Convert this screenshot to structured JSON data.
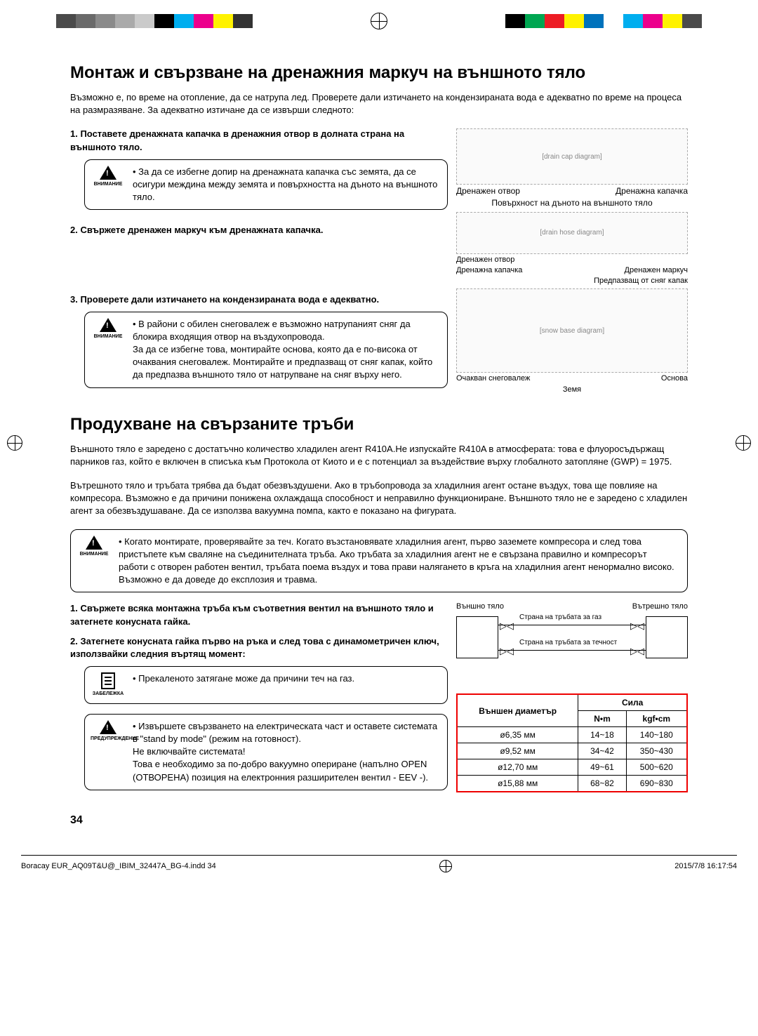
{
  "print": {
    "left_colors": [
      "#4a4a4a",
      "#6a6a6a",
      "#8a8a8a",
      "#aaaaaa",
      "#cacaca",
      "#000000",
      "#00aeef",
      "#ec008c",
      "#fff200",
      "#333333"
    ],
    "right_colors": [
      "#000000",
      "#00a651",
      "#ed1c24",
      "#fff200",
      "#0072bc",
      "#ffffff",
      "#00aeef",
      "#ec008c",
      "#fff200",
      "#4a4a4a"
    ]
  },
  "h1_1": "Монтаж и свързване на дренажния маркуч на външното тяло",
  "intro_1": "Възможно е, по време на отопление, да се натрупа лед. Проверете дали изтичането на кондензираната вода е адекватно по време на процеса на размразяване. За адекватно изтичане да се извърши следното:",
  "step1": "1.   Поставете дренажната капачка в дренажния отвор в долната страна на външното тяло.",
  "caution1_label": "ВНИМАНИЕ",
  "caution1_text": "За да се избегне допир на дренажната капачка със земята, да се осигури междина между земята и повърхността на дъното на външното тяло.",
  "fig1_labels": {
    "l1": "Дренажен отвор",
    "l2": "Дренажна капачка",
    "l3": "Повърхност на дъното на външното тяло",
    "l4": "Дренажен отвор",
    "l5": "Дренажна капачка",
    "l6": "Дренажен маркуч",
    "l7": "Предпазващ от сняг капак",
    "l8": "Очакван снеговалеж",
    "l9": "Основа",
    "l10": "Земя"
  },
  "step2": "2.   Свържете дренажен маркуч към дренажната капачка.",
  "step3": "3.   Проверете дали изтичането на кондензираната вода е адекватно.",
  "caution2_label": "ВНИМАНИЕ",
  "caution2_text": "В райони с обилен снеговалеж е възможно натрупаният сняг да блокира входящия отвор на въздухопровода.\nЗа да се избегне това, монтирайте основа, която да е по-висока от очаквания снеговалеж. Монтирайте и предпазващ от сняг капак, който да предпазва външното тяло от натрупване на сняг върху него.",
  "h1_2": "Продухване на свързаните тръби",
  "intro_2a": "Външното тяло е заредено с достатъчно количество хладилен агент R410A.Не изпускайте R410A в атмосферата: това е флуоросъдържащ парников газ, който е включен в списъка към Протокола от Киото и е с потенциал за въздействие върху глобалното затопляне (GWP) = 1975.",
  "intro_2b": "Вътрешното тяло и тръбата трябва да бъдат обезвъздушени. Ако в тръбопровода за хладилния агент остане въздух, това ще повлияе на компресора. Възможно е да причини понижена охлаждаща способност и неправилно функциониране. Външното тяло не е заредено с хладилен агент за обезвъздушаване. Да се използва вакуумна помпа, както е показано на фигурата.",
  "caution3_label": "ВНИМАНИЕ",
  "caution3_text": "Когато монтирате, проверявайте за теч. Когато възстановявате хладилния агент, първо заземете компресора и след това пристъпете към сваляне на съединителната тръба. Ако тръбата за хладилния агент не е свързана правилно и компресорът работи с отворен работен вентил, тръбата поема въздух и това прави налягането в кръга на хладилния агент ненормално високо. Възможно е да доведе до експлозия и травма.",
  "step_b1": "1.   Свържете всяка монтажна тръба към съответния вентил на външното тяло и затегнете конусната гайка.",
  "step_b2": "2.   Затегнете конусната гайка първо на ръка и след това с динамометричен ключ, използвайки следния въртящ момент:",
  "note_label": "ЗАБЕЛЕЖКА",
  "note_text": "Прекаленото затягане може да причини теч на газ.",
  "warn_label": "ПРЕДУПРЕЖДЕНИЕ",
  "warn_text": "Извършете свързването на електрическата част и оставете системата в \"stand by mode\" (режим на готовност).\nНе включвайте системата!\nТова е необходимо за по-добро вакуумно опериране (напълно OPEN (ОТВОРЕНА) позиция на електронния разширителен вентил  - EEV -).",
  "diagram2": {
    "outdoor": "Външно тяло",
    "indoor": "Вътрешно тяло",
    "gas": "Страна на тръбата за газ",
    "liquid": "Страна на тръбата за течност"
  },
  "table": {
    "h_outer": "Външен диаметър",
    "h_force": "Сила",
    "h_nm": "N•m",
    "h_kgf": "kgf•cm",
    "rows": [
      {
        "d": "ø6,35 мм",
        "nm": "14~18",
        "kgf": "140~180"
      },
      {
        "d": "ø9,52 мм",
        "nm": "34~42",
        "kgf": "350~430"
      },
      {
        "d": "ø12,70 мм",
        "nm": "49~61",
        "kgf": "500~620"
      },
      {
        "d": "ø15,88 мм",
        "nm": "68~82",
        "kgf": "690~830"
      }
    ]
  },
  "page_num": "34",
  "footer_file": "Boracay EUR_AQ09T&U@_IBIM_32447A_BG-4.indd   34",
  "footer_date": "2015/7/8   16:17:54"
}
